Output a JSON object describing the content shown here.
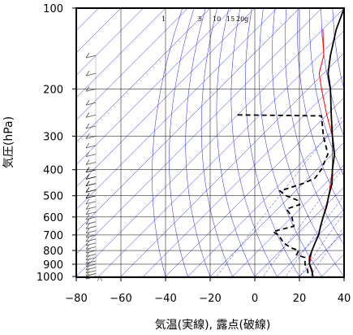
{
  "chart_data": {
    "type": "skew-t",
    "xlabel": "気温(実線), 露点(破線)",
    "ylabel": "気圧(hPa)",
    "x_ticks": [
      -80,
      -60,
      -40,
      -20,
      0,
      20,
      40
    ],
    "y_ticks": [
      100,
      200,
      300,
      400,
      500,
      600,
      700,
      800,
      900,
      1000
    ],
    "xlim": [
      -80,
      40
    ],
    "ylim": [
      1050,
      100
    ],
    "y_scale": "log",
    "mixing_ratio_labels": [
      "1",
      "5",
      "10",
      "15",
      "20g"
    ],
    "temperature_profile": [
      {
        "p": 100,
        "t": -80
      },
      {
        "p": 120,
        "t": -74
      },
      {
        "p": 150,
        "t": -65
      },
      {
        "p": 175,
        "t": -58
      },
      {
        "p": 200,
        "t": -50
      },
      {
        "p": 250,
        "t": -38
      },
      {
        "p": 300,
        "t": -28
      },
      {
        "p": 350,
        "t": -19
      },
      {
        "p": 400,
        "t": -13
      },
      {
        "p": 450,
        "t": -7
      },
      {
        "p": 500,
        "t": -3
      },
      {
        "p": 550,
        "t": 1
      },
      {
        "p": 600,
        "t": 4
      },
      {
        "p": 650,
        "t": 7
      },
      {
        "p": 700,
        "t": 10
      },
      {
        "p": 750,
        "t": 12
      },
      {
        "p": 800,
        "t": 14
      },
      {
        "p": 850,
        "t": 16
      },
      {
        "p": 900,
        "t": 19
      },
      {
        "p": 950,
        "t": 23
      },
      {
        "p": 1000,
        "t": 26
      }
    ],
    "parcel_profile": [
      {
        "p": 120,
        "t": -80
      },
      {
        "p": 150,
        "t": -68
      },
      {
        "p": 175,
        "t": -62
      },
      {
        "p": 200,
        "t": -54
      },
      {
        "p": 250,
        "t": -40
      },
      {
        "p": 300,
        "t": -28
      },
      {
        "p": 400,
        "t": -13
      },
      {
        "p": 500,
        "t": -3
      },
      {
        "p": 600,
        "t": 4
      },
      {
        "p": 700,
        "t": 10
      },
      {
        "p": 800,
        "t": 14
      },
      {
        "p": 900,
        "t": 19
      },
      {
        "p": 1000,
        "t": 26
      }
    ],
    "dewpoint_profile": [
      {
        "p": 250,
        "t": -80
      },
      {
        "p": 252,
        "t": -42
      },
      {
        "p": 300,
        "t": -32
      },
      {
        "p": 350,
        "t": -22
      },
      {
        "p": 400,
        "t": -18
      },
      {
        "p": 430,
        "t": -17
      },
      {
        "p": 450,
        "t": -20
      },
      {
        "p": 480,
        "t": -27
      },
      {
        "p": 500,
        "t": -22
      },
      {
        "p": 520,
        "t": -15
      },
      {
        "p": 540,
        "t": -12
      },
      {
        "p": 560,
        "t": -16
      },
      {
        "p": 600,
        "t": -10
      },
      {
        "p": 650,
        "t": -5
      },
      {
        "p": 680,
        "t": -12
      },
      {
        "p": 700,
        "t": -8
      },
      {
        "p": 750,
        "t": -2
      },
      {
        "p": 780,
        "t": 3
      },
      {
        "p": 800,
        "t": 8
      },
      {
        "p": 830,
        "t": 9
      },
      {
        "p": 850,
        "t": 14
      },
      {
        "p": 900,
        "t": 17
      },
      {
        "p": 950,
        "t": 21
      },
      {
        "p": 1000,
        "t": 24
      }
    ],
    "wind_barbs": [
      {
        "p": 150
      },
      {
        "p": 175
      },
      {
        "p": 200
      },
      {
        "p": 225
      },
      {
        "p": 250
      },
      {
        "p": 275
      },
      {
        "p": 300
      },
      {
        "p": 325
      },
      {
        "p": 350
      },
      {
        "p": 375
      },
      {
        "p": 400
      },
      {
        "p": 425
      },
      {
        "p": 450
      },
      {
        "p": 475
      },
      {
        "p": 500
      },
      {
        "p": 525
      },
      {
        "p": 550
      },
      {
        "p": 575
      },
      {
        "p": 600
      },
      {
        "p": 625
      },
      {
        "p": 650
      },
      {
        "p": 675
      },
      {
        "p": 700
      },
      {
        "p": 725
      },
      {
        "p": 750
      },
      {
        "p": 775
      },
      {
        "p": 800
      },
      {
        "p": 825
      },
      {
        "p": 850
      },
      {
        "p": 875
      },
      {
        "p": 900
      },
      {
        "p": 925
      },
      {
        "p": 950
      },
      {
        "p": 975
      },
      {
        "p": 1000
      }
    ],
    "colors": {
      "temperature": "#000000",
      "dewpoint": "#000000",
      "parcel": "#ff0000",
      "isopleths": "#2020e0",
      "grid": "#000000",
      "barbs": "#555555",
      "barbs_highlight": "#000000"
    }
  }
}
